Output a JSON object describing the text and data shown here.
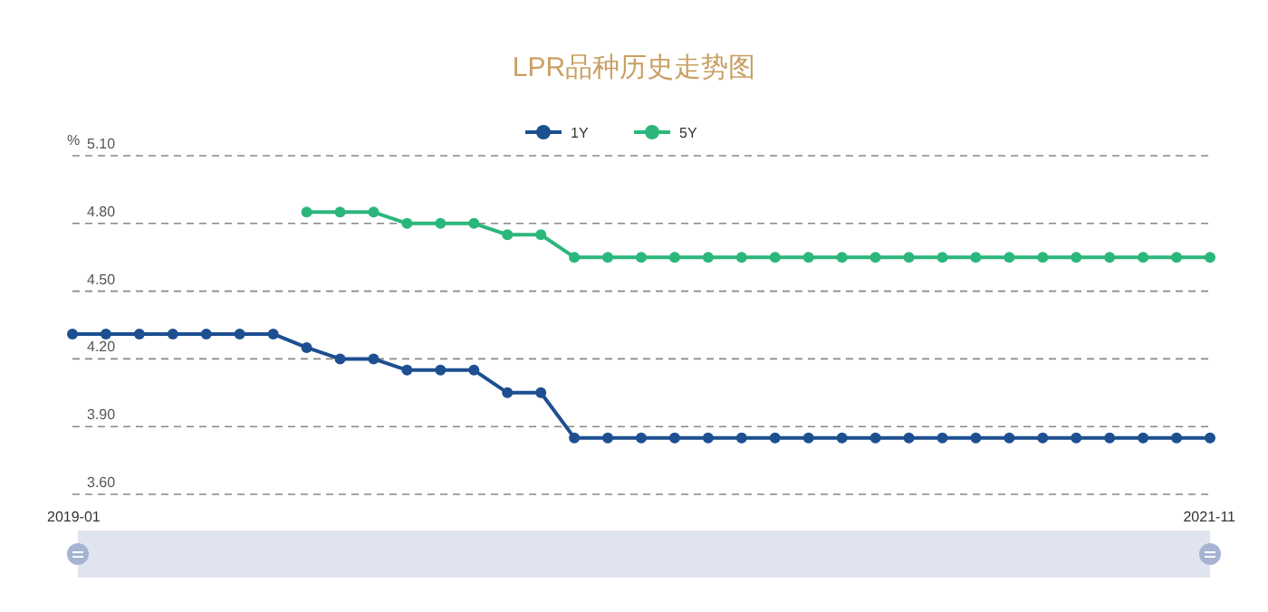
{
  "chart_data": {
    "type": "line",
    "title": "LPR品种历史走势图",
    "ylabel": "%",
    "categories": [
      "2019-01",
      null,
      null,
      null,
      null,
      null,
      null,
      null,
      null,
      null,
      null,
      null,
      null,
      null,
      null,
      null,
      null,
      null,
      null,
      null,
      null,
      null,
      null,
      null,
      null,
      null,
      null,
      null,
      null,
      null,
      null,
      null,
      null,
      null,
      "2021-11"
    ],
    "series": [
      {
        "name": "1Y",
        "color": "#1d4f91",
        "values": [
          4.31,
          4.31,
          4.31,
          4.31,
          4.31,
          4.31,
          4.31,
          4.25,
          4.2,
          4.2,
          4.15,
          4.15,
          4.15,
          4.05,
          4.05,
          3.85,
          3.85,
          3.85,
          3.85,
          3.85,
          3.85,
          3.85,
          3.85,
          3.85,
          3.85,
          3.85,
          3.85,
          3.85,
          3.85,
          3.85,
          3.85,
          3.85,
          3.85,
          3.85,
          3.85
        ]
      },
      {
        "name": "5Y",
        "color": "#2bb77b",
        "values": [
          null,
          null,
          null,
          null,
          null,
          null,
          null,
          4.85,
          4.85,
          4.85,
          4.8,
          4.8,
          4.8,
          4.75,
          4.75,
          4.65,
          4.65,
          4.65,
          4.65,
          4.65,
          4.65,
          4.65,
          4.65,
          4.65,
          4.65,
          4.65,
          4.65,
          4.65,
          4.65,
          4.65,
          4.65,
          4.65,
          4.65,
          4.65,
          4.65
        ]
      }
    ],
    "ylim": [
      3.6,
      5.1
    ],
    "yticks": [
      {
        "value": 3.6,
        "label": "3.60"
      },
      {
        "value": 3.9,
        "label": "3.90"
      },
      {
        "value": 4.2,
        "label": "4.20"
      },
      {
        "value": 4.5,
        "label": "4.50"
      },
      {
        "value": 4.8,
        "label": "4.80"
      },
      {
        "value": 5.1,
        "label": "5.10"
      }
    ],
    "grid": "y",
    "legend": "top",
    "marker": "circle",
    "line_style": "solid"
  }
}
